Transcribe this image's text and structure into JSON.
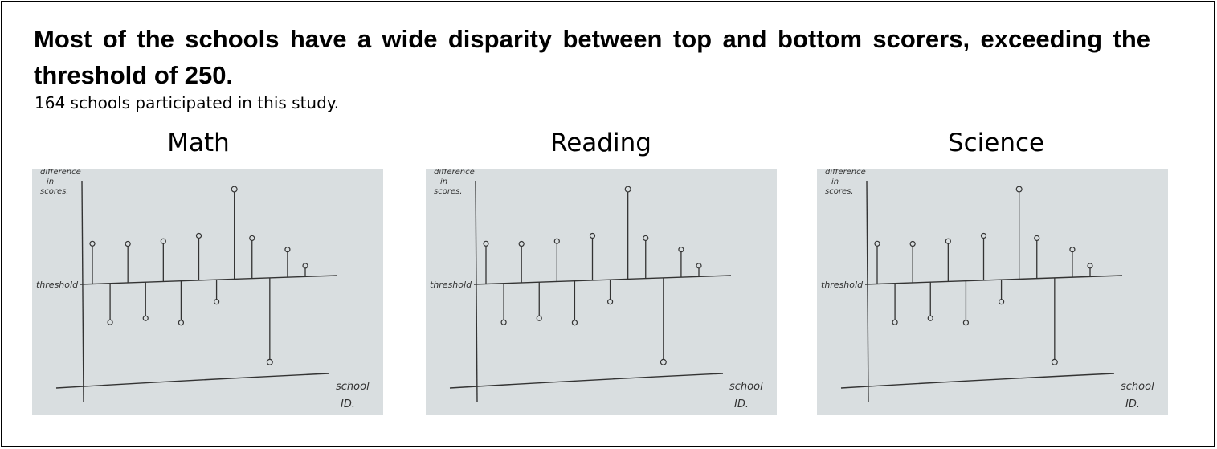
{
  "headline": "Most of the schools have a wide disparity between top and bottom scorers, exceeding the threshold of 250.",
  "subheadline": "164 schools participated in this study.",
  "paper_color": "#d9dee0",
  "ink_color": "#333333",
  "chart_data": [
    {
      "type": "scatter",
      "title": "Math",
      "ylabel": "difference in scores.",
      "xlabel": "school ID.",
      "threshold_label": "threshold",
      "x": [
        1,
        2,
        3,
        4,
        5,
        6,
        7,
        8,
        9,
        10,
        11,
        12,
        13
      ],
      "values": [
        27,
        -26,
        26,
        -24,
        27,
        -28,
        30,
        -14,
        62,
        27,
        -58,
        18,
        6
      ]
    },
    {
      "type": "scatter",
      "title": "Reading",
      "ylabel": "difference in scores.",
      "xlabel": "school ID.",
      "threshold_label": "threshold",
      "x": [
        1,
        2,
        3,
        4,
        5,
        6,
        7,
        8,
        9,
        10,
        11,
        12,
        13
      ],
      "values": [
        27,
        -26,
        26,
        -24,
        27,
        -28,
        30,
        -14,
        62,
        27,
        -58,
        18,
        6
      ]
    },
    {
      "type": "scatter",
      "title": "Science",
      "ylabel": "difference in scores.",
      "xlabel": "school ID.",
      "threshold_label": "threshold",
      "x": [
        1,
        2,
        3,
        4,
        5,
        6,
        7,
        8,
        9,
        10,
        11,
        12,
        13
      ],
      "values": [
        27,
        -26,
        26,
        -24,
        27,
        -28,
        30,
        -14,
        62,
        27,
        -58,
        18,
        6
      ]
    }
  ]
}
